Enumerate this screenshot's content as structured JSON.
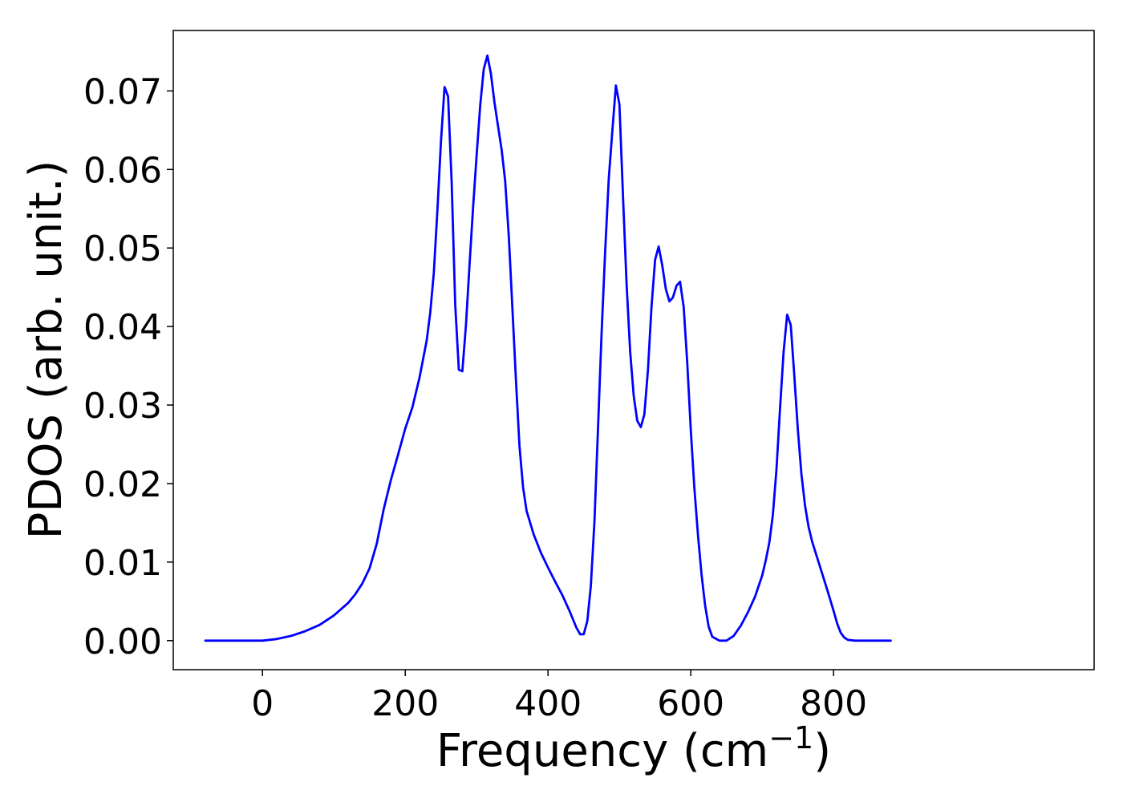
{
  "chart_data": {
    "type": "line",
    "title": "",
    "xlabel": "Frequency (cm",
    "xlabel_sup": "−1",
    "xlabel_close": ")",
    "ylabel": "PDOS (arb. unit.)",
    "xlim": [
      -125,
      1165
    ],
    "ylim": [
      -0.0037,
      0.0777
    ],
    "xticks": [
      0,
      200,
      400,
      600,
      800
    ],
    "xtick_labels": [
      "0",
      "200",
      "400",
      "600",
      "800"
    ],
    "yticks": [
      0.0,
      0.01,
      0.02,
      0.03,
      0.04,
      0.05,
      0.06,
      0.07
    ],
    "ytick_labels": [
      "0.00",
      "0.01",
      "0.02",
      "0.03",
      "0.04",
      "0.05",
      "0.06",
      "0.07"
    ],
    "grid": false,
    "legend": "none",
    "series": [
      {
        "color": "#0000ff",
        "x": [
          -80,
          -40,
          0,
          20,
          40,
          60,
          80,
          100,
          120,
          130,
          140,
          150,
          160,
          170,
          180,
          190,
          200,
          210,
          220,
          230,
          235,
          240,
          245,
          250,
          255,
          260,
          265,
          270,
          275,
          280,
          285,
          290,
          295,
          300,
          305,
          310,
          315,
          320,
          325,
          330,
          335,
          340,
          345,
          350,
          355,
          360,
          365,
          370,
          380,
          390,
          400,
          410,
          420,
          430,
          440,
          445,
          450,
          455,
          460,
          465,
          470,
          475,
          480,
          485,
          490,
          495,
          500,
          505,
          510,
          515,
          520,
          525,
          530,
          535,
          540,
          545,
          550,
          555,
          560,
          565,
          570,
          575,
          580,
          585,
          590,
          595,
          600,
          605,
          610,
          615,
          620,
          625,
          630,
          640,
          650,
          660,
          670,
          680,
          690,
          700,
          705,
          710,
          715,
          720,
          725,
          730,
          735,
          740,
          745,
          750,
          755,
          760,
          765,
          770,
          780,
          790,
          800,
          805,
          810,
          815,
          820,
          830,
          850,
          880
        ],
        "y": [
          0,
          0,
          0,
          0.0002,
          0.0006,
          0.0012,
          0.002,
          0.0032,
          0.0048,
          0.0059,
          0.0073,
          0.0092,
          0.0123,
          0.0168,
          0.0205,
          0.0237,
          0.027,
          0.0297,
          0.0335,
          0.0382,
          0.0418,
          0.0468,
          0.0548,
          0.0635,
          0.0705,
          0.0693,
          0.0583,
          0.0428,
          0.0345,
          0.0343,
          0.0402,
          0.0478,
          0.0552,
          0.0618,
          0.0682,
          0.0728,
          0.0745,
          0.0722,
          0.0685,
          0.0655,
          0.0625,
          0.0585,
          0.0515,
          0.0425,
          0.0332,
          0.0248,
          0.0195,
          0.0165,
          0.0135,
          0.0112,
          0.0093,
          0.0075,
          0.0058,
          0.0038,
          0.0016,
          0.0008,
          0.0008,
          0.0025,
          0.007,
          0.0152,
          0.027,
          0.0392,
          0.0495,
          0.0588,
          0.0648,
          0.0707,
          0.0683,
          0.0565,
          0.0455,
          0.0368,
          0.0312,
          0.028,
          0.0272,
          0.0288,
          0.0345,
          0.0425,
          0.0485,
          0.0502,
          0.0478,
          0.0448,
          0.0432,
          0.0437,
          0.0452,
          0.0457,
          0.0425,
          0.0355,
          0.0268,
          0.0195,
          0.0135,
          0.0085,
          0.0045,
          0.0018,
          0.0005,
          0,
          0,
          0.0006,
          0.0019,
          0.0036,
          0.0056,
          0.0083,
          0.0102,
          0.0125,
          0.016,
          0.0218,
          0.0295,
          0.0368,
          0.0415,
          0.0402,
          0.0338,
          0.0268,
          0.0212,
          0.0172,
          0.0145,
          0.0126,
          0.0097,
          0.0068,
          0.0038,
          0.0022,
          0.001,
          0.0004,
          0.0001,
          0,
          0,
          0
        ]
      }
    ]
  }
}
